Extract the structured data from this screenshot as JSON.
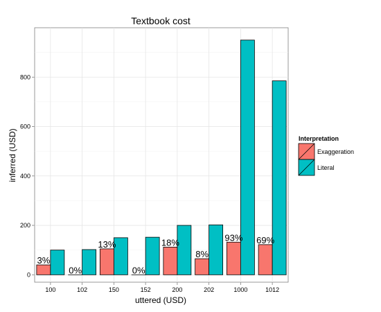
{
  "chart_data": {
    "type": "bar",
    "title": "Textbook cost",
    "xlabel": "uttered (USD)",
    "ylabel": "inferred (USD)",
    "categories": [
      "100",
      "102",
      "150",
      "152",
      "200",
      "202",
      "1000",
      "1012"
    ],
    "series": [
      {
        "name": "Exaggeration",
        "color": "#F8766D",
        "values": [
          40,
          0,
          105,
          0,
          112,
          65,
          132,
          122
        ]
      },
      {
        "name": "Literal",
        "color": "#00BFC4",
        "values": [
          100,
          102,
          150,
          152,
          200,
          202,
          950,
          785
        ]
      }
    ],
    "percent_labels": [
      "3%",
      "0%",
      "13%",
      "0%",
      "18%",
      "8%",
      "93%",
      "69%"
    ],
    "yticks": [
      "0",
      "200",
      "400",
      "600",
      "800"
    ],
    "ylim": [
      -30,
      1000
    ],
    "grid": true,
    "legend": {
      "title": "Interpretation",
      "position": "right"
    }
  }
}
